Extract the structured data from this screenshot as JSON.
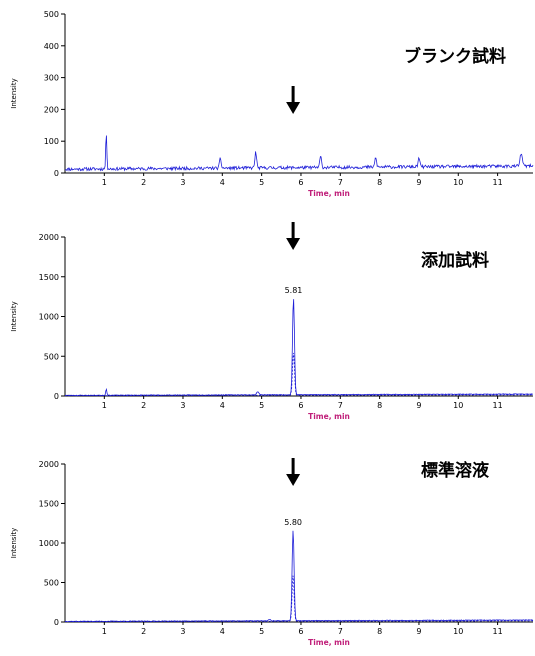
{
  "chart_data": [
    {
      "type": "line",
      "title": "ブランク試料",
      "xlabel": "Time, min",
      "ylabel": "Intensity",
      "xlim": [
        0,
        11.9
      ],
      "ylim": [
        0,
        500
      ],
      "x_ticks": [
        "1",
        "2",
        "3",
        "4",
        "5",
        "6",
        "7",
        "8",
        "9",
        "10",
        "11"
      ],
      "y_ticks": [
        "0",
        "100",
        "200",
        "300",
        "400",
        "500"
      ],
      "arrow_at": 5.8,
      "baseline": {
        "start": 12,
        "end": 22,
        "noise": 5,
        "seed": 11
      },
      "spikes": [
        {
          "x": 1.05,
          "y": 113,
          "w": 0.02
        },
        {
          "x": 4.85,
          "y": 50,
          "w": 0.03
        },
        {
          "x": 3.95,
          "y": 30,
          "w": 0.03
        },
        {
          "x": 6.5,
          "y": 35,
          "w": 0.03
        },
        {
          "x": 7.9,
          "y": 30,
          "w": 0.03
        },
        {
          "x": 9.0,
          "y": 28,
          "w": 0.03
        },
        {
          "x": 11.6,
          "y": 40,
          "w": 0.04
        }
      ],
      "series": [
        {
          "color": "#1f1fd8",
          "dashed": false
        }
      ]
    },
    {
      "type": "line",
      "title": "添加試料",
      "xlabel": "Time, min",
      "ylabel": "Intensity",
      "xlim": [
        0,
        11.9
      ],
      "ylim": [
        0,
        2000
      ],
      "x_ticks": [
        "1",
        "2",
        "3",
        "4",
        "5",
        "6",
        "7",
        "8",
        "9",
        "10",
        "11"
      ],
      "y_ticks": [
        "0",
        "500",
        "1000",
        "1500",
        "2000"
      ],
      "arrow_at": 5.8,
      "peak_label": "5.81",
      "baseline": {
        "start": 8,
        "end": 25,
        "noise": 4,
        "seed": 23
      },
      "spikes": [
        {
          "x": 1.05,
          "y": 80,
          "w": 0.02
        },
        {
          "x": 4.9,
          "y": 40,
          "w": 0.04
        }
      ],
      "series": [
        {
          "color": "#1f1fd8",
          "dashed": false,
          "peak": {
            "x": 5.81,
            "y": 1220,
            "w": 0.035
          }
        },
        {
          "color": "#1f1fd8",
          "dashed": true,
          "peak": {
            "x": 5.81,
            "y": 540,
            "w": 0.035
          }
        }
      ]
    },
    {
      "type": "line",
      "title": "標準溶液",
      "xlabel": "Time, min",
      "ylabel": "Intensity",
      "xlim": [
        0,
        11.9
      ],
      "ylim": [
        0,
        2000
      ],
      "x_ticks": [
        "1",
        "2",
        "3",
        "4",
        "5",
        "6",
        "7",
        "8",
        "9",
        "10",
        "11"
      ],
      "y_ticks": [
        "0",
        "500",
        "1000",
        "1500",
        "2000"
      ],
      "arrow_at": 5.8,
      "peak_label": "5.80",
      "baseline": {
        "start": 8,
        "end": 25,
        "noise": 4,
        "seed": 37
      },
      "spikes": [
        {
          "x": 5.2,
          "y": 15,
          "w": 0.04
        }
      ],
      "series": [
        {
          "color": "#1f1fd8",
          "dashed": false,
          "peak": {
            "x": 5.8,
            "y": 1150,
            "w": 0.035
          }
        },
        {
          "color": "#1f1fd8",
          "dashed": true,
          "peak": {
            "x": 5.8,
            "y": 580,
            "w": 0.035
          }
        }
      ]
    }
  ]
}
